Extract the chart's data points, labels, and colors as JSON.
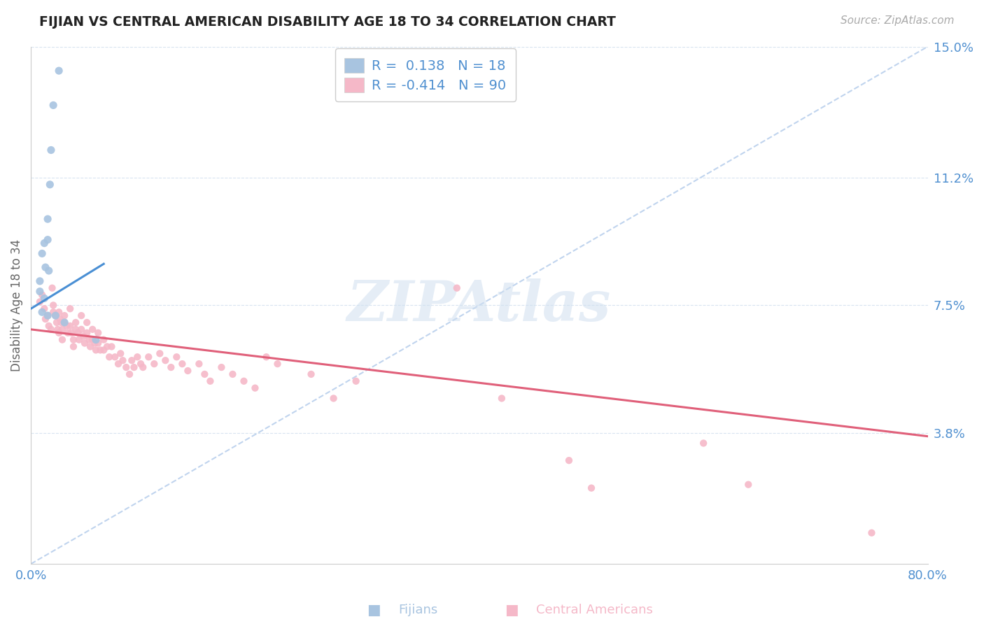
{
  "title": "FIJIAN VS CENTRAL AMERICAN DISABILITY AGE 18 TO 34 CORRELATION CHART",
  "source": "Source: ZipAtlas.com",
  "ylabel": "Disability Age 18 to 34",
  "xlim": [
    0.0,
    0.8
  ],
  "ylim": [
    0.0,
    0.15
  ],
  "ytick_vals": [
    0.0,
    0.038,
    0.075,
    0.112,
    0.15
  ],
  "ytick_labels": [
    "",
    "3.8%",
    "7.5%",
    "11.2%",
    "15.0%"
  ],
  "xtick_vals": [
    0.0,
    0.8
  ],
  "xtick_labels": [
    "0.0%",
    "80.0%"
  ],
  "fijian_R": 0.138,
  "fijian_N": 18,
  "central_R": -0.414,
  "central_N": 90,
  "fijian_scatter_color": "#a8c4e0",
  "fijian_line_color": "#4a8fd4",
  "central_scatter_color": "#f5b8c8",
  "central_line_color": "#e0607a",
  "dashed_color": "#c0d4ee",
  "grid_color": "#d8e4f0",
  "bg_color": "#ffffff",
  "watermark_color": "#d0dff0",
  "axis_tick_color": "#5090d0",
  "title_color": "#222222",
  "source_color": "#aaaaaa",
  "ylabel_color": "#666666",
  "fijian_line_x0": 0.0,
  "fijian_line_y0": 0.074,
  "fijian_line_x1": 0.065,
  "fijian_line_y1": 0.087,
  "central_line_x0": 0.0,
  "central_line_y0": 0.068,
  "central_line_x1": 0.8,
  "central_line_y1": 0.037,
  "dashed_line_x0": 0.0,
  "dashed_line_y0": 0.0,
  "dashed_line_x1": 0.8,
  "dashed_line_y1": 0.15,
  "fijian_scatter": [
    [
      0.008,
      0.082
    ],
    [
      0.01,
      0.09
    ],
    [
      0.012,
      0.093
    ],
    [
      0.013,
      0.086
    ],
    [
      0.015,
      0.1
    ],
    [
      0.015,
      0.094
    ],
    [
      0.016,
      0.085
    ],
    [
      0.017,
      0.11
    ],
    [
      0.018,
      0.12
    ],
    [
      0.02,
      0.133
    ],
    [
      0.025,
      0.143
    ],
    [
      0.012,
      0.077
    ],
    [
      0.01,
      0.073
    ],
    [
      0.015,
      0.072
    ],
    [
      0.008,
      0.079
    ],
    [
      0.022,
      0.072
    ],
    [
      0.03,
      0.07
    ],
    [
      0.058,
      0.065
    ]
  ],
  "central_scatter": [
    [
      0.008,
      0.076
    ],
    [
      0.01,
      0.078
    ],
    [
      0.012,
      0.074
    ],
    [
      0.013,
      0.071
    ],
    [
      0.015,
      0.072
    ],
    [
      0.016,
      0.069
    ],
    [
      0.018,
      0.068
    ],
    [
      0.019,
      0.08
    ],
    [
      0.02,
      0.075
    ],
    [
      0.02,
      0.073
    ],
    [
      0.022,
      0.072
    ],
    [
      0.023,
      0.07
    ],
    [
      0.024,
      0.068
    ],
    [
      0.025,
      0.067
    ],
    [
      0.025,
      0.073
    ],
    [
      0.026,
      0.071
    ],
    [
      0.027,
      0.07
    ],
    [
      0.028,
      0.068
    ],
    [
      0.028,
      0.065
    ],
    [
      0.03,
      0.072
    ],
    [
      0.03,
      0.07
    ],
    [
      0.032,
      0.069
    ],
    [
      0.033,
      0.067
    ],
    [
      0.035,
      0.074
    ],
    [
      0.035,
      0.069
    ],
    [
      0.036,
      0.067
    ],
    [
      0.038,
      0.065
    ],
    [
      0.038,
      0.063
    ],
    [
      0.04,
      0.07
    ],
    [
      0.04,
      0.068
    ],
    [
      0.042,
      0.067
    ],
    [
      0.043,
      0.065
    ],
    [
      0.045,
      0.072
    ],
    [
      0.045,
      0.068
    ],
    [
      0.047,
      0.066
    ],
    [
      0.048,
      0.064
    ],
    [
      0.05,
      0.07
    ],
    [
      0.05,
      0.067
    ],
    [
      0.052,
      0.065
    ],
    [
      0.053,
      0.063
    ],
    [
      0.055,
      0.068
    ],
    [
      0.055,
      0.065
    ],
    [
      0.057,
      0.064
    ],
    [
      0.058,
      0.062
    ],
    [
      0.06,
      0.067
    ],
    [
      0.06,
      0.064
    ],
    [
      0.062,
      0.062
    ],
    [
      0.065,
      0.065
    ],
    [
      0.065,
      0.062
    ],
    [
      0.068,
      0.063
    ],
    [
      0.07,
      0.06
    ],
    [
      0.072,
      0.063
    ],
    [
      0.075,
      0.06
    ],
    [
      0.078,
      0.058
    ],
    [
      0.08,
      0.061
    ],
    [
      0.082,
      0.059
    ],
    [
      0.085,
      0.057
    ],
    [
      0.088,
      0.055
    ],
    [
      0.09,
      0.059
    ],
    [
      0.092,
      0.057
    ],
    [
      0.095,
      0.06
    ],
    [
      0.098,
      0.058
    ],
    [
      0.1,
      0.057
    ],
    [
      0.105,
      0.06
    ],
    [
      0.11,
      0.058
    ],
    [
      0.115,
      0.061
    ],
    [
      0.12,
      0.059
    ],
    [
      0.125,
      0.057
    ],
    [
      0.13,
      0.06
    ],
    [
      0.135,
      0.058
    ],
    [
      0.14,
      0.056
    ],
    [
      0.15,
      0.058
    ],
    [
      0.155,
      0.055
    ],
    [
      0.16,
      0.053
    ],
    [
      0.17,
      0.057
    ],
    [
      0.18,
      0.055
    ],
    [
      0.19,
      0.053
    ],
    [
      0.2,
      0.051
    ],
    [
      0.21,
      0.06
    ],
    [
      0.22,
      0.058
    ],
    [
      0.25,
      0.055
    ],
    [
      0.27,
      0.048
    ],
    [
      0.29,
      0.053
    ],
    [
      0.38,
      0.08
    ],
    [
      0.42,
      0.048
    ],
    [
      0.48,
      0.03
    ],
    [
      0.5,
      0.022
    ],
    [
      0.6,
      0.035
    ],
    [
      0.64,
      0.023
    ],
    [
      0.75,
      0.009
    ]
  ]
}
